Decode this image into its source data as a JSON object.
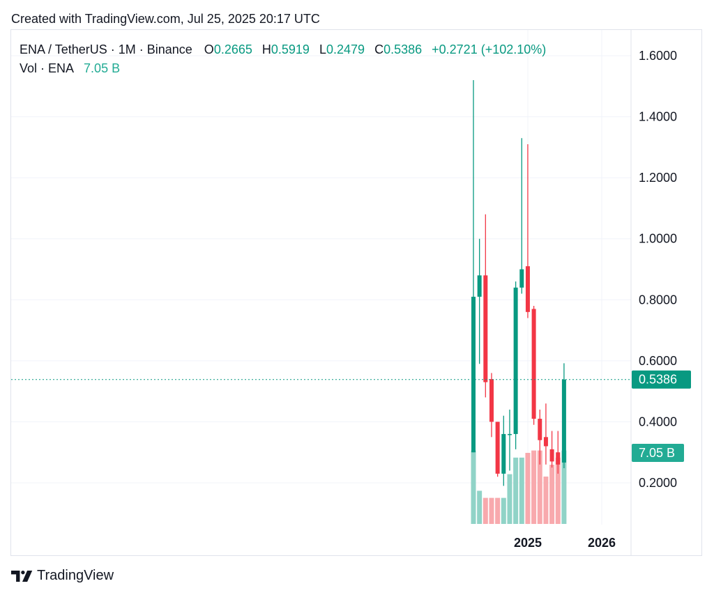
{
  "header": {
    "created": "Created with TradingView.com, Jul 25, 2025 20:17 UTC"
  },
  "legend": {
    "symbol": "ENA / TetherUS · 1M · Binance",
    "o_label": "O",
    "o_value": "0.2665",
    "h_label": "H",
    "h_value": "0.5919",
    "l_label": "L",
    "l_value": "0.2479",
    "c_label": "C",
    "c_value": "0.5386",
    "change": "+0.2721 (+102.10%)",
    "vol_label": "Vol · ENA",
    "vol_value": "7.05 B"
  },
  "footer": {
    "brand": "TradingView"
  },
  "colors": {
    "up": "#089981",
    "down": "#f23645",
    "vol_up": "#90d3c7",
    "vol_down": "#f8a9ad",
    "grid": "#f0f3fa"
  },
  "chart_data": {
    "type": "candlestick",
    "interval": "1M",
    "y_ticks": [
      "1.6000",
      "1.4000",
      "1.2000",
      "1.0000",
      "0.8000",
      "0.6000",
      "0.4000",
      "0.2000"
    ],
    "ylim": [
      0.07,
      1.68
    ],
    "x_ticks": [
      "2025",
      "2026"
    ],
    "last_price_label": "0.5386",
    "last_price": 0.5386,
    "volume_label": "7.05 B",
    "candles": [
      {
        "o": 0.3,
        "h": 1.52,
        "l": 0.3,
        "c": 0.81,
        "vol_frac": 0.31
      },
      {
        "o": 0.81,
        "h": 1.0,
        "l": 0.59,
        "c": 0.88,
        "vol_frac": 0.14
      },
      {
        "o": 0.88,
        "h": 1.08,
        "l": 0.48,
        "c": 0.53,
        "vol_frac": 0.11
      },
      {
        "o": 0.54,
        "h": 0.56,
        "l": 0.35,
        "c": 0.4,
        "vol_frac": 0.11
      },
      {
        "o": 0.4,
        "h": 0.4,
        "l": 0.22,
        "c": 0.23,
        "vol_frac": 0.11
      },
      {
        "o": 0.23,
        "h": 0.42,
        "l": 0.19,
        "c": 0.36,
        "vol_frac": 0.11
      },
      {
        "o": 0.36,
        "h": 0.44,
        "l": 0.24,
        "c": 0.36,
        "vol_frac": 0.21
      },
      {
        "o": 0.36,
        "h": 0.86,
        "l": 0.31,
        "c": 0.84,
        "vol_frac": 0.28
      },
      {
        "o": 0.84,
        "h": 1.33,
        "l": 0.82,
        "c": 0.9,
        "vol_frac": 0.28
      },
      {
        "o": 0.91,
        "h": 1.31,
        "l": 0.74,
        "c": 0.76,
        "vol_frac": 0.3
      },
      {
        "o": 0.77,
        "h": 0.78,
        "l": 0.39,
        "c": 0.41,
        "vol_frac": 0.31
      },
      {
        "o": 0.41,
        "h": 0.44,
        "l": 0.26,
        "c": 0.34,
        "vol_frac": 0.31
      },
      {
        "o": 0.35,
        "h": 0.46,
        "l": 0.26,
        "c": 0.32,
        "vol_frac": 0.2
      },
      {
        "o": 0.31,
        "h": 0.37,
        "l": 0.25,
        "c": 0.27,
        "vol_frac": 0.25
      },
      {
        "o": 0.3,
        "h": 0.37,
        "l": 0.23,
        "c": 0.26,
        "vol_frac": 0.28
      },
      {
        "o": 0.2665,
        "h": 0.5919,
        "l": 0.2479,
        "c": 0.5386,
        "vol_frac": 0.31
      }
    ]
  }
}
